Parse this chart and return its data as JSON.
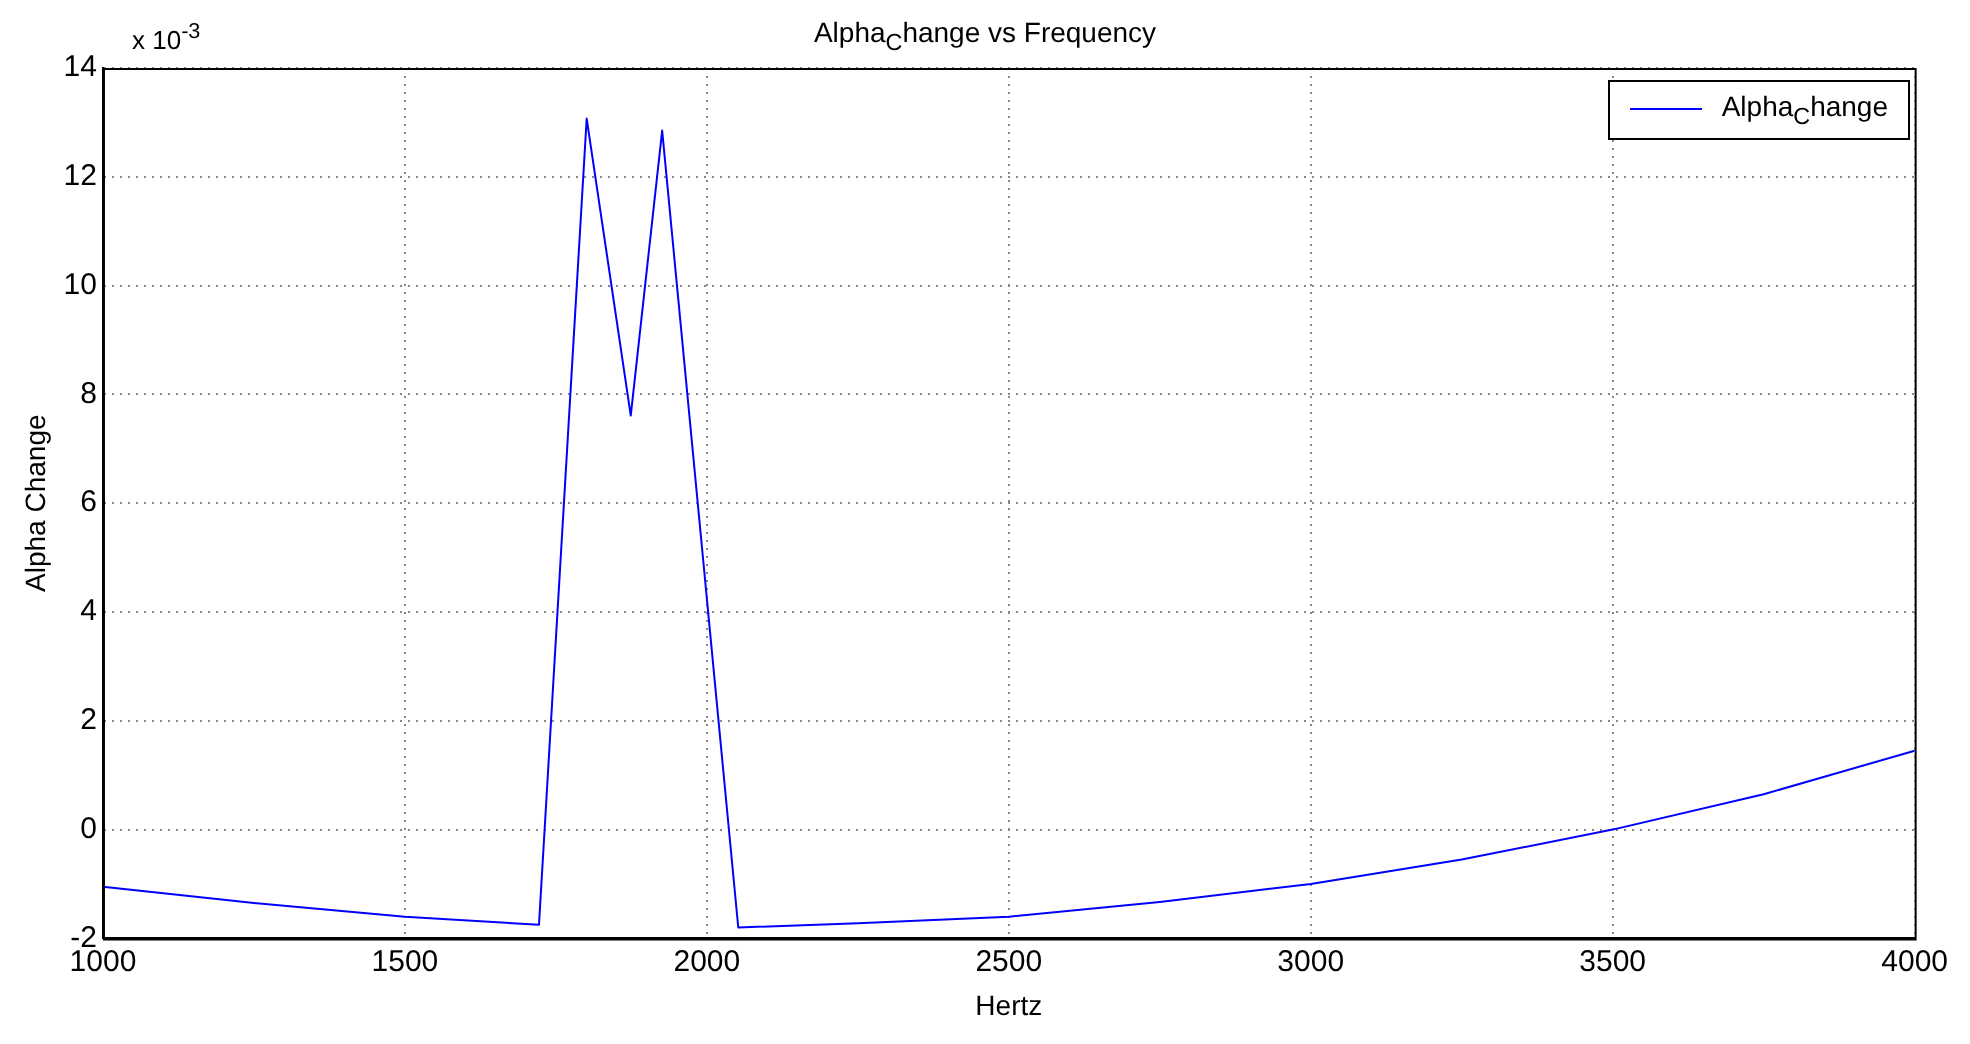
{
  "chart_data": {
    "type": "line",
    "title": "Alpha$_{C}$hange vs Frequency",
    "xlabel": "Hertz",
    "ylabel": "Alpha Change",
    "annotations": [
      "x 10$^{-3}$"
    ],
    "x": [
      1000,
      1250,
      1500,
      1722,
      1801,
      1874,
      1926,
      2052,
      2250,
      2500,
      2750,
      3000,
      3250,
      3500,
      3750,
      4000
    ],
    "series": [
      {
        "name": "Alpha$_{C}$hange",
        "color": "#0000ff",
        "values": [
          -1.05,
          -1.35,
          -1.6,
          -1.75,
          13.07,
          7.61,
          12.85,
          -1.8,
          -1.72,
          -1.6,
          -1.33,
          -1.0,
          -0.55,
          0,
          0.65,
          1.45
        ]
      }
    ],
    "xlim": [
      1000,
      4000
    ],
    "xticks": [
      1000,
      1500,
      2000,
      2500,
      3000,
      3500,
      4000
    ],
    "ylim": [
      -2,
      14
    ],
    "yticks": [
      -2,
      0,
      2,
      4,
      6,
      8,
      10,
      12,
      14
    ],
    "grid": true,
    "legend": "top right",
    "marker": "none",
    "line_style": "solid"
  }
}
